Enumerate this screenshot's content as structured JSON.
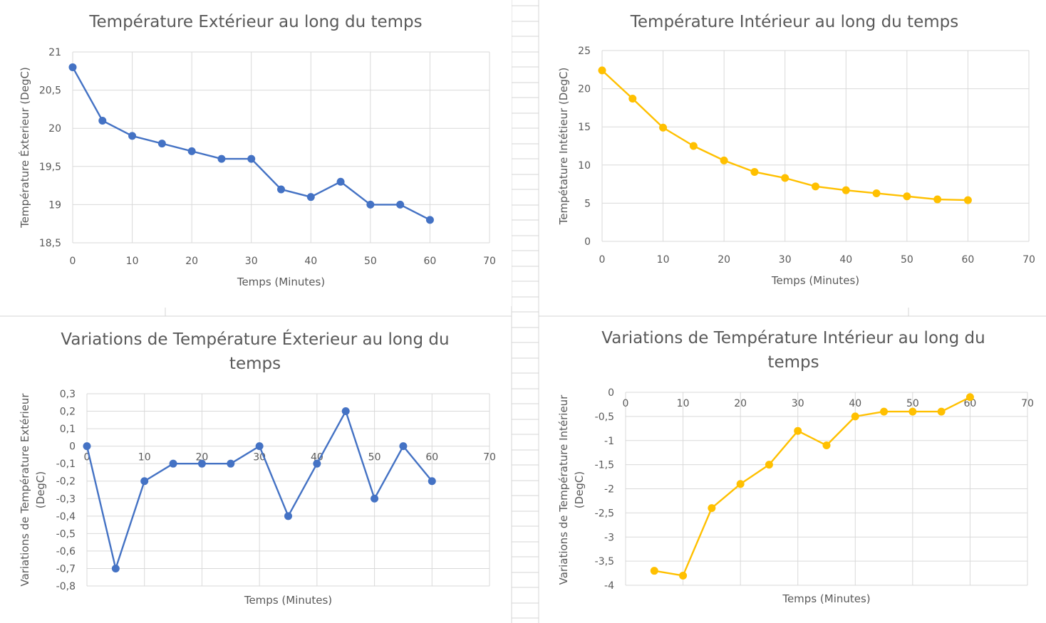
{
  "chart_data": [
    {
      "type": "line",
      "title": "Température Extérieur au long du temps",
      "xlabel": "Temps (Minutes)",
      "ylabel": "Température Éxterieur (DegC)",
      "xlim": [
        0,
        70
      ],
      "ylim": [
        18.5,
        21
      ],
      "x_ticks": [
        "0",
        "10",
        "20",
        "30",
        "40",
        "50",
        "60",
        "70"
      ],
      "y_ticks": [
        "18,5",
        "19",
        "19,5",
        "20",
        "20,5",
        "21"
      ],
      "grid": true,
      "color": "#4472C4",
      "x": [
        0,
        5,
        10,
        15,
        20,
        25,
        30,
        35,
        40,
        45,
        50,
        55,
        60
      ],
      "series": [
        {
          "values": [
            20.8,
            20.1,
            19.9,
            19.8,
            19.7,
            19.6,
            19.6,
            19.2,
            19.1,
            19.3,
            19.0,
            19.0,
            18.8
          ]
        }
      ]
    },
    {
      "type": "line",
      "title": "Température Intérieur au long du temps",
      "xlabel": "Temps (Minutes)",
      "ylabel": "Tempétature Intétieur (DegC)",
      "xlim": [
        0,
        70
      ],
      "ylim": [
        0,
        25
      ],
      "x_ticks": [
        "0",
        "10",
        "20",
        "30",
        "40",
        "50",
        "60",
        "70"
      ],
      "y_ticks": [
        "0",
        "5",
        "10",
        "15",
        "20",
        "25"
      ],
      "grid": true,
      "color": "#FFC000",
      "x": [
        0,
        5,
        10,
        15,
        20,
        25,
        30,
        35,
        40,
        45,
        50,
        55,
        60
      ],
      "series": [
        {
          "values": [
            22.4,
            18.7,
            14.9,
            12.5,
            10.6,
            9.1,
            8.3,
            7.2,
            6.7,
            6.3,
            5.9,
            5.5,
            5.4
          ]
        }
      ]
    },
    {
      "type": "line",
      "title": "Variations de Température Éxterieur au long du temps",
      "xlabel": "Temps (Minutes)",
      "ylabel": "Variations de Température Extérieur (DegC)",
      "xlim": [
        0,
        70
      ],
      "ylim": [
        -0.8,
        0.3
      ],
      "x_ticks": [
        "0",
        "10",
        "20",
        "30",
        "40",
        "50",
        "60",
        "70"
      ],
      "y_ticks": [
        "-0,8",
        "-0,7",
        "-0,6",
        "-0,5",
        "-0,4",
        "-0,3",
        "-0,2",
        "-0,1",
        "0",
        "0,1",
        "0,2",
        "0,3"
      ],
      "grid": true,
      "color": "#4472C4",
      "x": [
        0,
        5,
        10,
        15,
        20,
        25,
        30,
        35,
        40,
        45,
        50,
        55,
        60
      ],
      "series": [
        {
          "values": [
            0,
            -0.7,
            -0.2,
            -0.1,
            -0.1,
            -0.1,
            0,
            -0.4,
            -0.1,
            0.2,
            -0.3,
            0,
            -0.2
          ]
        }
      ]
    },
    {
      "type": "line",
      "title": "Variations de Température Intérieur au long du temps",
      "xlabel": "Temps (Minutes)",
      "ylabel": "Variations de Température Intérieur (DegC)",
      "xlim": [
        0,
        70
      ],
      "ylim": [
        -4,
        0
      ],
      "x_ticks": [
        "0",
        "10",
        "20",
        "30",
        "40",
        "50",
        "60",
        "70"
      ],
      "y_ticks": [
        "-4",
        "-3,5",
        "-3",
        "-2,5",
        "-2",
        "-1,5",
        "-1",
        "-0,5",
        "0"
      ],
      "grid": true,
      "color": "#FFC000",
      "x": [
        5,
        10,
        15,
        20,
        25,
        30,
        35,
        40,
        45,
        50,
        55,
        60
      ],
      "series": [
        {
          "values": [
            -3.7,
            -3.8,
            -2.4,
            -1.9,
            -1.5,
            -0.8,
            -1.1,
            -0.5,
            -0.4,
            -0.4,
            -0.4,
            -0.1
          ]
        }
      ]
    }
  ]
}
